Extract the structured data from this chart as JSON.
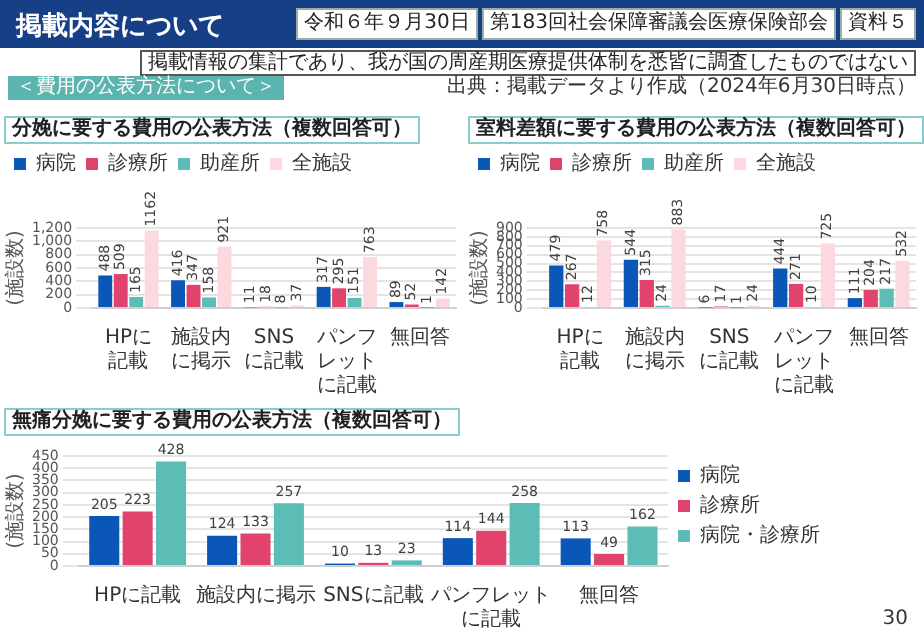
{
  "chart_data": [
    {
      "type": "other",
      "title": "掲載内容について",
      "subtitle": "＜費用の公表方法について＞",
      "annotations": [
        "掲載情報の集計であり、我が国の周産期医療提供体制を悉皆に調査したものではない",
        "令和６年９月30日",
        "第183回社会保障審議会医療保険部会",
        "資料５",
        "出典：掲載データより作成（2024年6月30日時点）",
        "30"
      ]
    },
    {
      "type": "bar",
      "title": "分娩に要する費用の公表方法（複数回答可）",
      "ylabel": "(施設数)",
      "categories": [
        "HPに記載",
        "施設内に掲示",
        "SNSに記載",
        "パンフレットに記載",
        "無回答"
      ],
      "series": [
        {
          "name": "病院",
          "color": "#0b57b8",
          "values": [
            488,
            416,
            11,
            317,
            89
          ]
        },
        {
          "name": "診療所",
          "color": "#e0436b",
          "values": [
            509,
            347,
            18,
            295,
            52
          ]
        },
        {
          "name": "助産所",
          "color": "#5bbdb5",
          "values": [
            165,
            158,
            8,
            151,
            1
          ]
        },
        {
          "name": "全施設",
          "color": "#fcd9df",
          "values": [
            1162,
            921,
            37,
            763,
            142
          ]
        }
      ],
      "ylim": [
        0,
        1200
      ],
      "yticks": [
        0,
        200,
        400,
        600,
        800,
        {
          "value": 1000,
          "label": "1,000"
        },
        {
          "value": 1200,
          "label": "1,200"
        }
      ],
      "grid": "y",
      "legend": "top",
      "data_labels": true
    },
    {
      "type": "bar",
      "title": "室料差額に要する費用の公表方法（複数回答可）",
      "ylabel": "(施設数)",
      "categories": [
        "HPに記載",
        "施設内に掲示",
        "SNSに記載",
        "パンフレットに記載",
        "無回答"
      ],
      "series": [
        {
          "name": "病院",
          "color": "#0b57b8",
          "values": [
            479,
            544,
            6,
            444,
            111
          ]
        },
        {
          "name": "診療所",
          "color": "#e0436b",
          "values": [
            267,
            315,
            17,
            271,
            204
          ]
        },
        {
          "name": "助産所",
          "color": "#5bbdb5",
          "values": [
            12,
            24,
            1,
            10,
            217
          ]
        },
        {
          "name": "全施設",
          "color": "#fcd9df",
          "values": [
            758,
            883,
            24,
            725,
            532
          ]
        }
      ],
      "ylim": [
        0,
        900
      ],
      "yticks": [
        0,
        100,
        200,
        300,
        400,
        500,
        600,
        700,
        800,
        900
      ],
      "grid": "y",
      "legend": "top",
      "data_labels": true
    },
    {
      "type": "bar",
      "title": "無痛分娩に要する費用の公表方法（複数回答可）",
      "ylabel": "(施設数)",
      "categories": [
        "HPに記載",
        "施設内に掲示",
        "SNSに記載",
        "パンフレットに記載",
        "無回答"
      ],
      "series": [
        {
          "name": "病院",
          "color": "#0b57b8",
          "values": [
            205,
            124,
            10,
            114,
            113
          ]
        },
        {
          "name": "診療所",
          "color": "#e0436b",
          "values": [
            223,
            133,
            13,
            144,
            49
          ]
        },
        {
          "name": "病院・診療所",
          "color": "#5bbdb5",
          "values": [
            428,
            257,
            23,
            258,
            162
          ]
        }
      ],
      "ylim": [
        0,
        450
      ],
      "yticks": [
        0,
        50,
        100,
        150,
        200,
        250,
        300,
        350,
        400,
        450
      ],
      "grid": "y",
      "legend": "right",
      "data_labels": true
    }
  ]
}
